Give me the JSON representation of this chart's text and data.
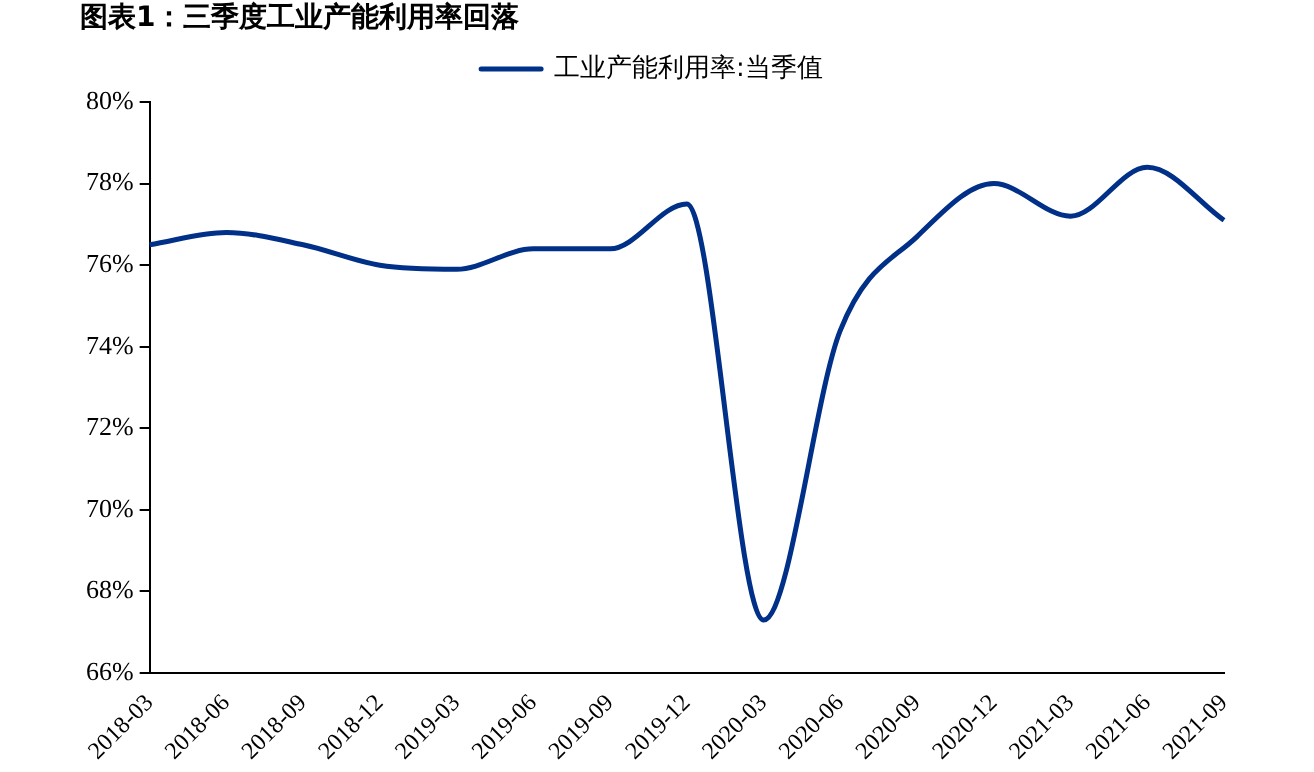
{
  "chart_data": {
    "type": "line",
    "title": "图表1：三季度工业产能利用率回落",
    "categories": [
      "2018-03",
      "2018-06",
      "2018-09",
      "2018-12",
      "2019-03",
      "2019-06",
      "2019-09",
      "2019-12",
      "2020-03",
      "2020-06",
      "2020-09",
      "2020-12",
      "2021-03",
      "2021-06",
      "2021-09"
    ],
    "series": [
      {
        "name": "工业产能利用率:当季值",
        "color": "#003087",
        "values": [
          76.5,
          76.8,
          76.5,
          76.0,
          75.9,
          76.4,
          76.4,
          77.5,
          67.3,
          74.4,
          76.7,
          78.0,
          77.2,
          78.4,
          77.1
        ]
      }
    ],
    "ylim": [
      66,
      80
    ],
    "yticks": [
      {
        "value": 66,
        "label": "66%"
      },
      {
        "value": 68,
        "label": "68%"
      },
      {
        "value": 70,
        "label": "70%"
      },
      {
        "value": 72,
        "label": "72%"
      },
      {
        "value": 74,
        "label": "74%"
      },
      {
        "value": 76,
        "label": "76%"
      },
      {
        "value": 78,
        "label": "78%"
      },
      {
        "value": 80,
        "label": "80%"
      }
    ],
    "grid": false,
    "legend": "top",
    "marker": "none",
    "line_style": "solid"
  }
}
